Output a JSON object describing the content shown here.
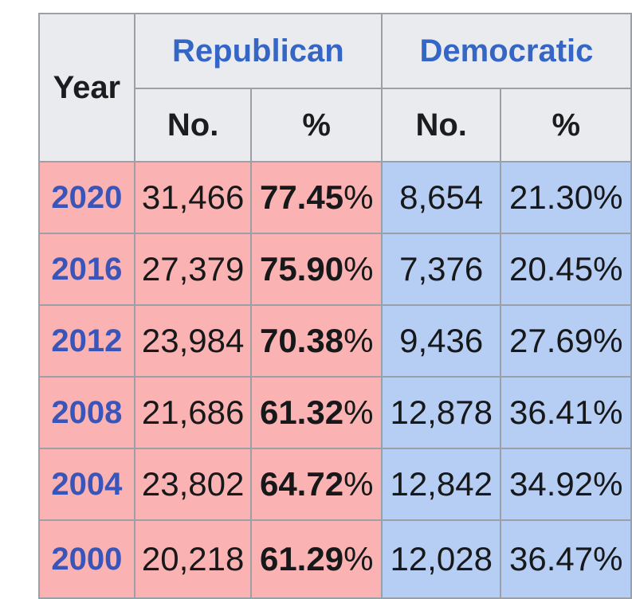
{
  "table": {
    "columns": {
      "year": "Year",
      "number": "No.",
      "percent": "%"
    },
    "parties": {
      "republican": "Republican",
      "democratic": "Democratic"
    },
    "percent_sign": "%",
    "rows": [
      {
        "year": "2020",
        "rep_no": "31,466",
        "rep_pct": "77.45",
        "dem_no": "8,654",
        "dem_pct": "21.30"
      },
      {
        "year": "2016",
        "rep_no": "27,379",
        "rep_pct": "75.90",
        "dem_no": "7,376",
        "dem_pct": "20.45"
      },
      {
        "year": "2012",
        "rep_no": "23,984",
        "rep_pct": "70.38",
        "dem_no": "9,436",
        "dem_pct": "27.69"
      },
      {
        "year": "2008",
        "rep_no": "21,686",
        "rep_pct": "61.32",
        "dem_no": "12,878",
        "dem_pct": "36.41"
      },
      {
        "year": "2004",
        "rep_no": "23,802",
        "rep_pct": "64.72",
        "dem_no": "12,842",
        "dem_pct": "34.92"
      },
      {
        "year": "2000",
        "rep_no": "20,218",
        "rep_pct": "61.29",
        "dem_no": "12,028",
        "dem_pct": "36.47"
      }
    ]
  },
  "colors": {
    "republican_bg": "#fab2b2",
    "democratic_bg": "#b6cdf4",
    "header_bg": "#eaebee",
    "border": "#9ba0a7",
    "party_link_blue": "#3566c6",
    "year_link_blue": "#3955b9"
  },
  "chart_data": {
    "type": "table",
    "columns": [
      "Year",
      "Republican No.",
      "Republican %",
      "Democratic No.",
      "Democratic %"
    ],
    "rows": [
      [
        "2020",
        31466,
        77.45,
        8654,
        21.3
      ],
      [
        "2016",
        27379,
        75.9,
        7376,
        20.45
      ],
      [
        "2012",
        23984,
        70.38,
        9436,
        27.69
      ],
      [
        "2008",
        21686,
        61.32,
        12878,
        36.41
      ],
      [
        "2004",
        23802,
        64.72,
        12842,
        34.92
      ],
      [
        "2000",
        20218,
        61.29,
        12028,
        36.47
      ]
    ]
  }
}
